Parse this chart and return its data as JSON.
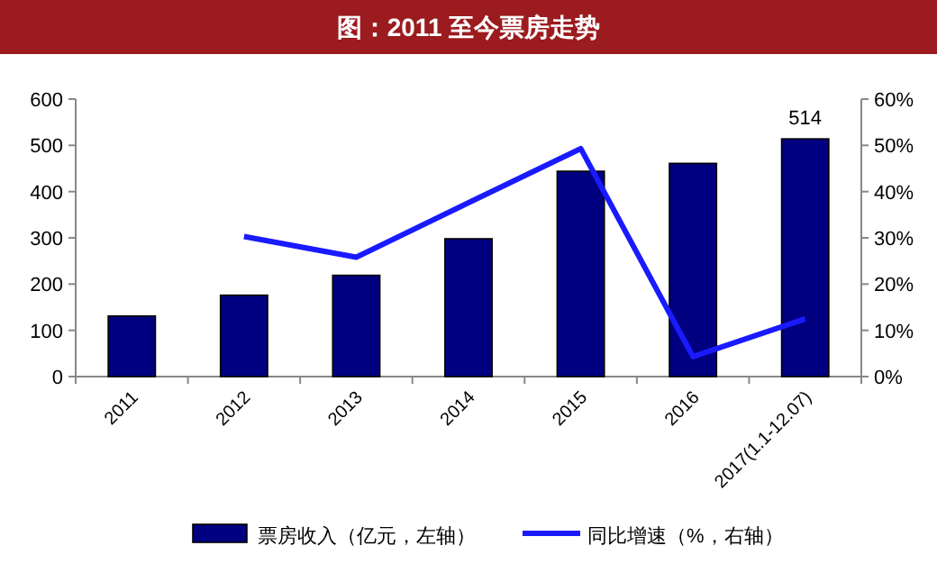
{
  "chart_data": {
    "type": "bar",
    "title": "图：2011 至今票房走势",
    "categories": [
      "2011",
      "2012",
      "2013",
      "2014",
      "2015",
      "2016",
      "2017(1.1-12.07)"
    ],
    "series": [
      {
        "name": "票房收入（亿元，左轴）",
        "color": "#000080",
        "values": [
          131,
          176,
          219,
          298,
          444,
          461,
          514
        ],
        "value_labels": [
          null,
          null,
          null,
          null,
          null,
          null,
          "514"
        ]
      },
      {
        "name": "同比增速（%，右轴）",
        "type": "line",
        "axis": "y2",
        "color": "#1a1aff",
        "values": [
          null,
          30.3,
          25.8,
          37.6,
          49.3,
          4.3,
          12.5
        ]
      }
    ],
    "ylim": [
      0,
      600
    ],
    "yticks": [
      0,
      100,
      200,
      300,
      400,
      500,
      600
    ],
    "y2lim": [
      0,
      60
    ],
    "y2ticks": [
      {
        "value": 0,
        "label": "0%"
      },
      {
        "value": 10,
        "label": "10%"
      },
      {
        "value": 20,
        "label": "20%"
      },
      {
        "value": 30,
        "label": "30%"
      },
      {
        "value": 40,
        "label": "40%"
      },
      {
        "value": 50,
        "label": "50%"
      },
      {
        "value": 60,
        "label": "60%"
      }
    ],
    "legend": "bottom"
  }
}
